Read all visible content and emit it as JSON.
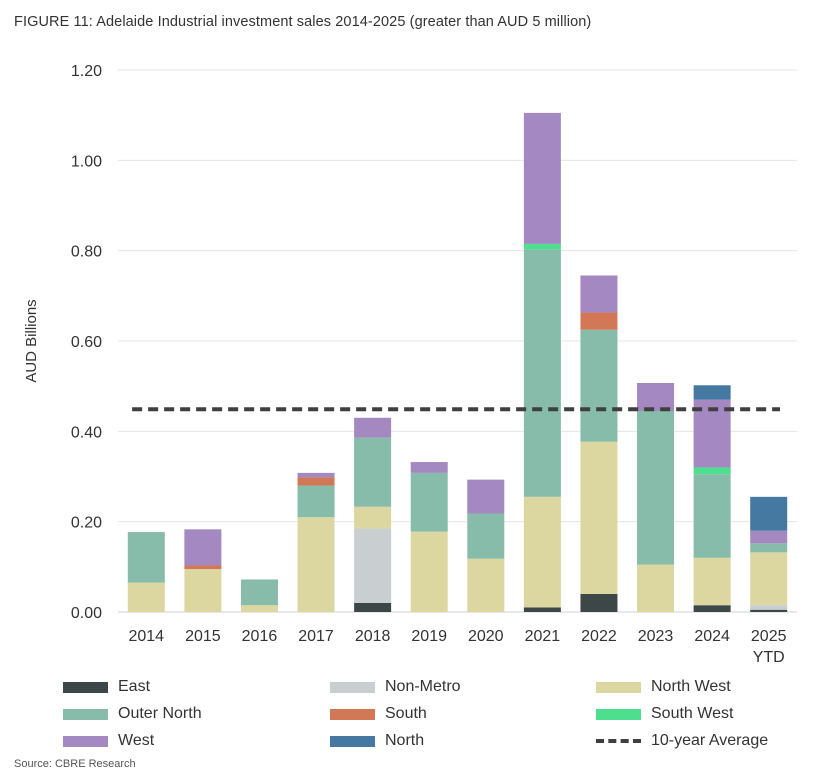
{
  "title": "FIGURE 11: Adelaide Industrial investment sales 2014-2025 (greater than AUD 5 million)",
  "source": "Source: CBRE Research",
  "chart_data": {
    "type": "bar",
    "stacked": true,
    "title": "FIGURE 11: Adelaide Industrial investment sales 2014-2025 (greater than AUD 5 million)",
    "xlabel": "",
    "ylabel": "AUD Billions",
    "ylim": [
      0,
      1.2
    ],
    "yticks": [
      "0.00",
      "0.20",
      "0.40",
      "0.60",
      "0.80",
      "1.00",
      "1.20"
    ],
    "categories": [
      [
        "2014"
      ],
      [
        "2015"
      ],
      [
        "2016"
      ],
      [
        "2017"
      ],
      [
        "2018"
      ],
      [
        "2019"
      ],
      [
        "2020"
      ],
      [
        "2021"
      ],
      [
        "2022"
      ],
      [
        "2023"
      ],
      [
        "2024"
      ],
      [
        "2025",
        "YTD"
      ]
    ],
    "grid": "horizontal",
    "legend_position": "bottom",
    "series": [
      {
        "name": "East",
        "color": "#3d4747",
        "values": [
          0,
          0,
          0,
          0,
          0.02,
          0,
          0,
          0.01,
          0.04,
          0,
          0.015,
          0.005
        ]
      },
      {
        "name": "Non-Metro",
        "color": "#c9ced0",
        "values": [
          0,
          0,
          0,
          0,
          0.165,
          0,
          0,
          0,
          0,
          0,
          0,
          0.01
        ]
      },
      {
        "name": "North West",
        "color": "#dcd7a0",
        "values": [
          0.065,
          0.095,
          0.015,
          0.21,
          0.048,
          0.178,
          0.118,
          0.245,
          0.337,
          0.105,
          0.105,
          0.117
        ]
      },
      {
        "name": "Outer North",
        "color": "#88bcaa",
        "values": [
          0.112,
          0,
          0.057,
          0.07,
          0.153,
          0.13,
          0.1,
          0.548,
          0.248,
          0.34,
          0.185,
          0.02
        ]
      },
      {
        "name": "South",
        "color": "#d27857",
        "values": [
          0,
          0.008,
          0,
          0.018,
          0,
          0,
          0,
          0,
          0.038,
          0,
          0,
          0
        ]
      },
      {
        "name": "South West",
        "color": "#4dde8e",
        "values": [
          0,
          0,
          0,
          0,
          0,
          0,
          0,
          0.012,
          0,
          0,
          0.015,
          0
        ]
      },
      {
        "name": "West",
        "color": "#a488c1",
        "values": [
          0,
          0.08,
          0,
          0.01,
          0.044,
          0.024,
          0.075,
          0.29,
          0.082,
          0.062,
          0.15,
          0.028
        ]
      },
      {
        "name": "North",
        "color": "#4679a2",
        "values": [
          0,
          0,
          0,
          0,
          0,
          0,
          0,
          0,
          0,
          0,
          0.032,
          0.075
        ]
      }
    ],
    "average": {
      "name": "10-year Average",
      "value": 0.449,
      "color": "#3f3f3f"
    }
  }
}
